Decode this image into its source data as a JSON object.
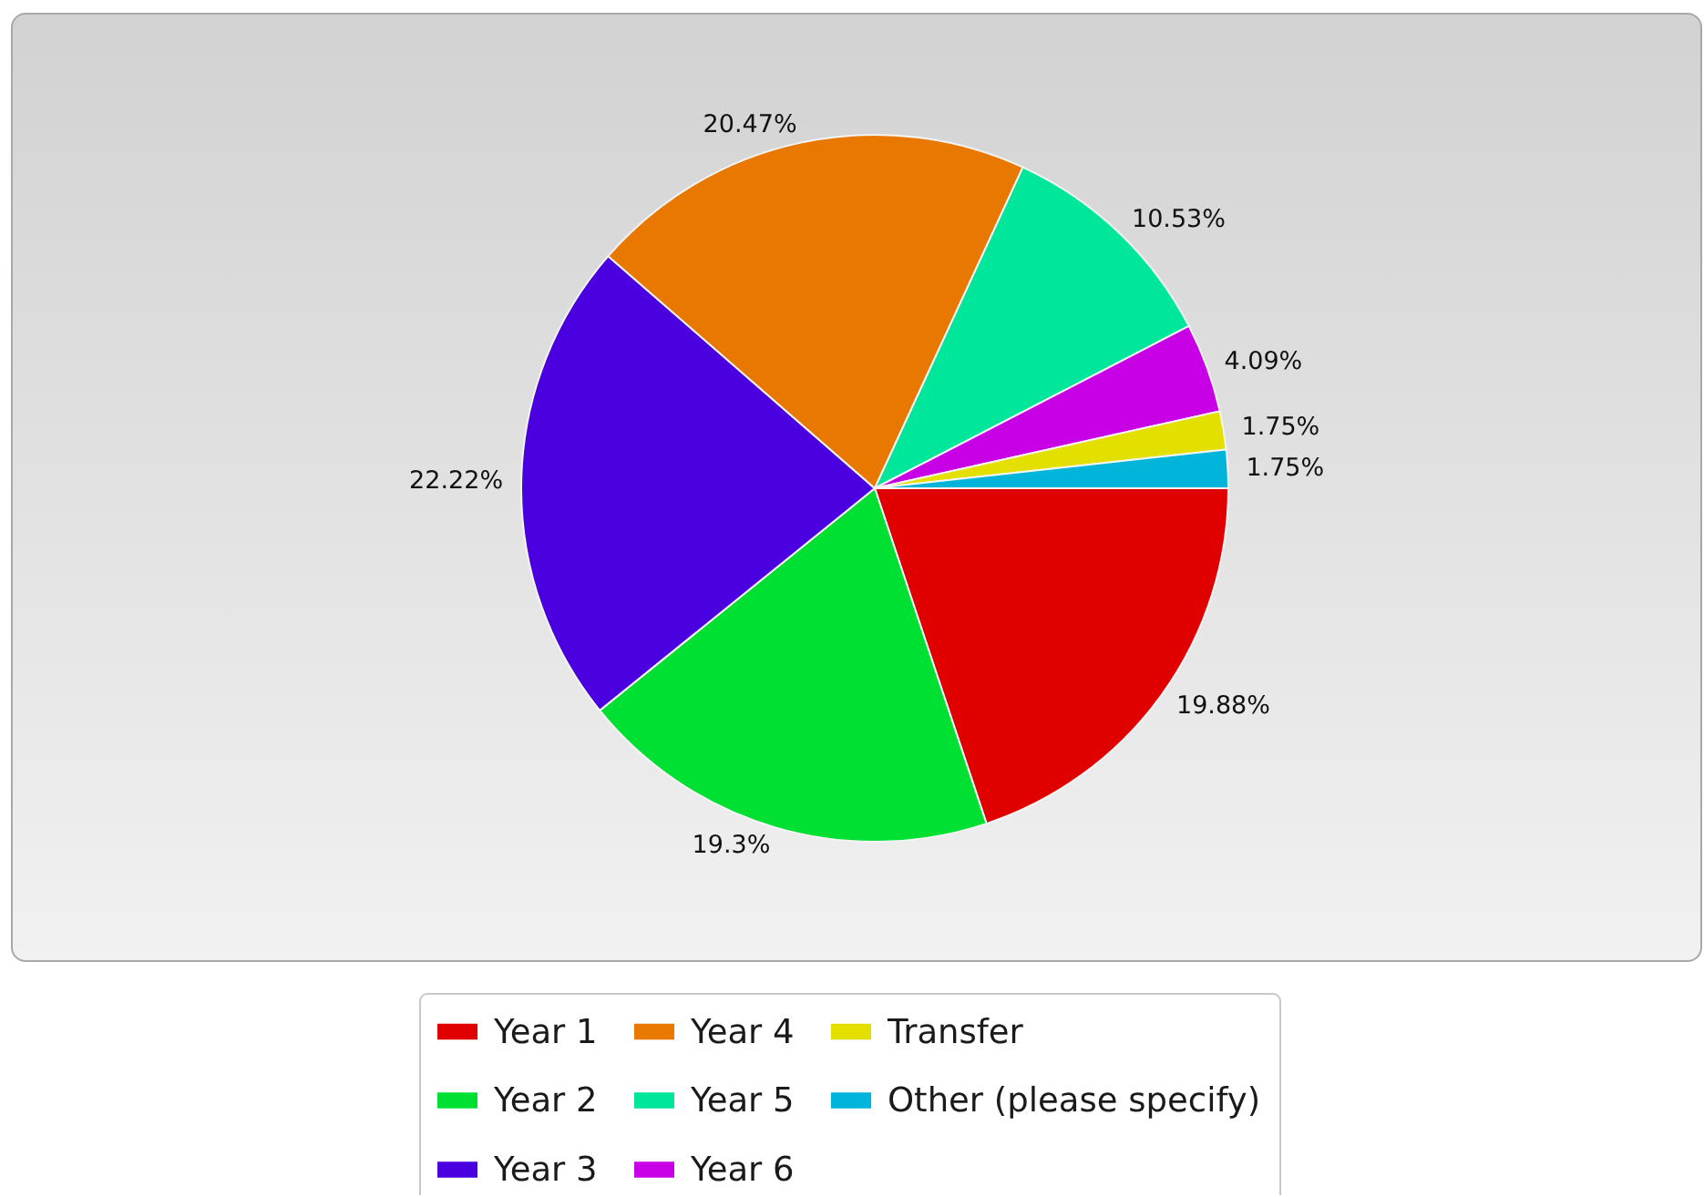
{
  "chart_data": {
    "type": "pie",
    "categories": [
      "Year 1",
      "Year 2",
      "Year 3",
      "Year 4",
      "Year 5",
      "Year 6",
      "Transfer",
      "Other (please specify)"
    ],
    "values": [
      19.88,
      19.3,
      22.22,
      20.47,
      10.53,
      4.09,
      1.75,
      1.75
    ],
    "colors": [
      "#e10000",
      "#00e033",
      "#4b00e0",
      "#e87800",
      "#00e69a",
      "#c800e6",
      "#e3e000",
      "#00b5d9"
    ],
    "value_labels": [
      "19.88%",
      "19.3%",
      "22.22%",
      "20.47%",
      "10.53%",
      "4.09%",
      "1.75%",
      "1.75%"
    ],
    "legend": "bottom"
  }
}
